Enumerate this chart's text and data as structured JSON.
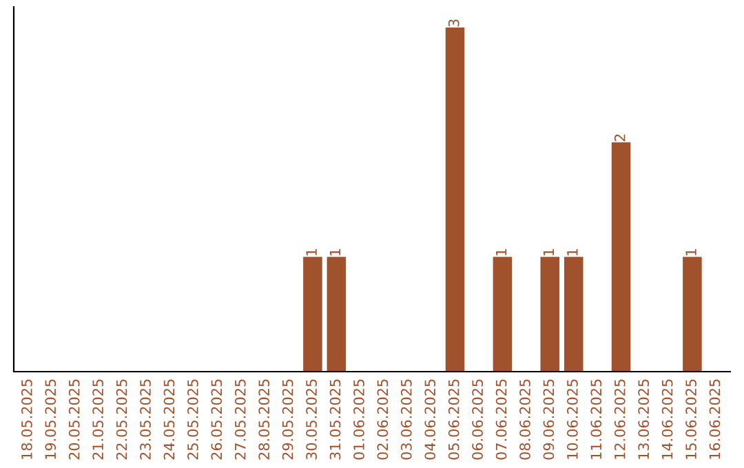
{
  "chart_data": {
    "type": "bar",
    "categories": [
      "18.05.2025",
      "19.05.2025",
      "20.05.2025",
      "21.05.2025",
      "22.05.2025",
      "23.05.2025",
      "24.05.2025",
      "25.05.2025",
      "26.05.2025",
      "27.05.2025",
      "28.05.2025",
      "29.05.2025",
      "30.05.2025",
      "31.05.2025",
      "01.06.2025",
      "02.06.2025",
      "03.06.2025",
      "04.06.2025",
      "05.06.2025",
      "06.06.2025",
      "07.06.2025",
      "08.06.2025",
      "09.06.2025",
      "10.06.2025",
      "11.06.2025",
      "12.06.2025",
      "13.06.2025",
      "14.06.2025",
      "15.06.2025",
      "16.06.2025"
    ],
    "values": [
      null,
      null,
      null,
      null,
      null,
      null,
      null,
      null,
      null,
      null,
      null,
      null,
      1,
      1,
      null,
      null,
      null,
      null,
      3,
      null,
      1,
      null,
      1,
      1,
      null,
      2,
      null,
      null,
      1,
      null
    ],
    "data_labels": true,
    "color": "#a0522d",
    "grid": false,
    "legend": false,
    "tick_labels": "x"
  }
}
